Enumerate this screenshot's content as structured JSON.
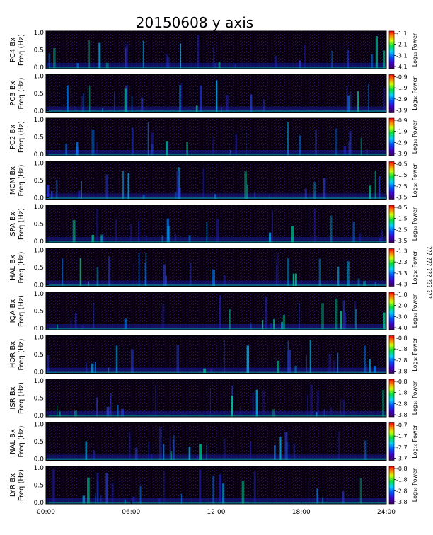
{
  "chart_data": {
    "type": "heatmap",
    "title": "20150608 y axis",
    "xlabel": "",
    "x_ticks": [
      "00:00",
      "06:00",
      "12:00",
      "18:00",
      "24:00"
    ],
    "xlim_hours": [
      0,
      24
    ],
    "ylim": [
      0,
      1
    ],
    "y_ticks": [
      "0.0",
      "0.5",
      "1.0"
    ],
    "colormap": "rainbow (purple-blue-cyan-green-yellow-red)",
    "colorbar_label": "Log₁₀ Power",
    "side_note": "??? ??? ??? ??? ???",
    "panels": [
      {
        "station": "PC4",
        "ylabel1": "PC4  Bx",
        "ylabel2": "Freq  (Hz)",
        "cbar": [
          "-1.1",
          "-2.1",
          "-3.1",
          "-4.1"
        ]
      },
      {
        "station": "PC3",
        "ylabel1": "PC3  Bx",
        "ylabel2": "Freq  (Hz)",
        "cbar": [
          "-0.9",
          "-1.9",
          "-2.9",
          "-3.9"
        ]
      },
      {
        "station": "PC2",
        "ylabel1": "PC2  Bx",
        "ylabel2": "Freq  (Hz)",
        "cbar": [
          "-0.9",
          "-1.9",
          "-2.9",
          "-3.9"
        ]
      },
      {
        "station": "MCM",
        "ylabel1": "MCM  Bx",
        "ylabel2": "Freq  (Hz)",
        "cbar": [
          "-0.5",
          "-1.5",
          "-2.5",
          "-3.5"
        ]
      },
      {
        "station": "SPA",
        "ylabel1": "SPA  Bx",
        "ylabel2": "Freq  (Hz)",
        "cbar": [
          "-0.5",
          "-1.5",
          "-2.5",
          "-3.5"
        ]
      },
      {
        "station": "HAL",
        "ylabel1": "HAL  Bx",
        "ylabel2": "Freq  (Hz)",
        "cbar": [
          "-1.3",
          "-2.3",
          "-3.3",
          "-4.3"
        ]
      },
      {
        "station": "IQA",
        "ylabel1": "IQA  Bx",
        "ylabel2": "Freq  (Hz)",
        "cbar": [
          "-1.0",
          "-2.0",
          "-3.0",
          "-4.0"
        ]
      },
      {
        "station": "HOR",
        "ylabel1": "HOR  Bx",
        "ylabel2": "Freq  (Hz)",
        "cbar": [
          "-0.8",
          "-1.8",
          "-2.8",
          "-3.8"
        ]
      },
      {
        "station": "ISR",
        "ylabel1": "ISR  Bx",
        "ylabel2": "Freq  (Hz)",
        "cbar": [
          "-0.8",
          "-1.8",
          "-2.8",
          "-3.8"
        ]
      },
      {
        "station": "NAL",
        "ylabel1": "NAL  Bx",
        "ylabel2": "Freq  (Hz)",
        "cbar": [
          "-0.7",
          "-1.7",
          "-2.7",
          "-3.7"
        ]
      },
      {
        "station": "LYR",
        "ylabel1": "LYR  Bx",
        "ylabel2": "Freq  (Hz)",
        "cbar": [
          "-0.8",
          "-1.8",
          "-2.8",
          "-3.8"
        ]
      }
    ]
  }
}
